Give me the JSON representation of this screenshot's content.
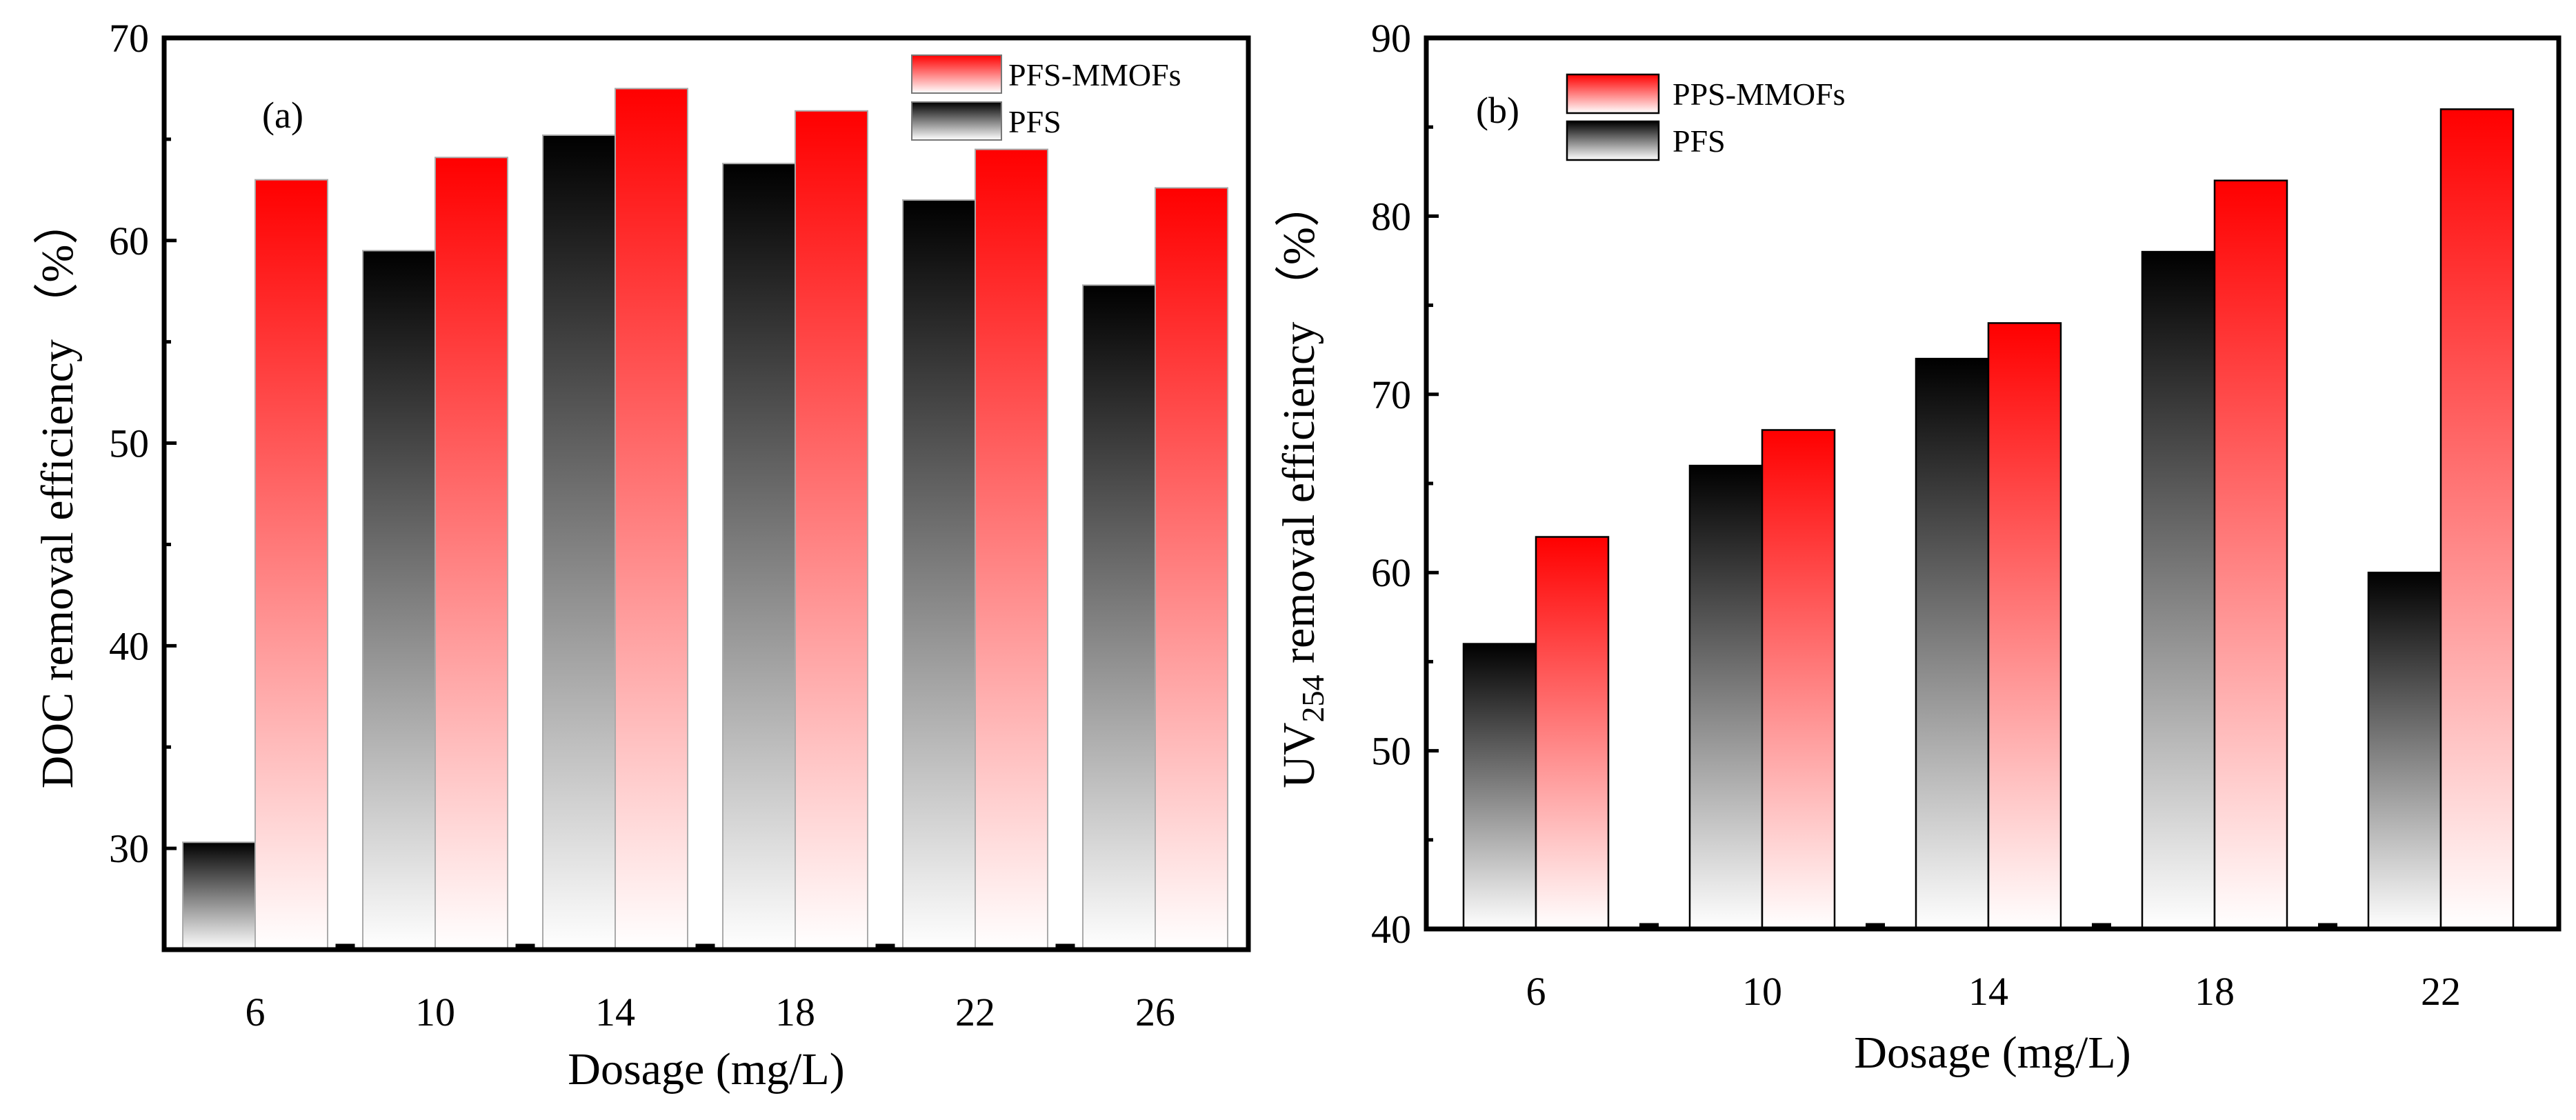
{
  "chart_data": [
    {
      "type": "bar",
      "panel_label": "(a)",
      "title": "",
      "xlabel": "Dosage (mg/L)",
      "ylabel": "DOC removal efficiency （%）",
      "categories": [
        "6",
        "10",
        "14",
        "18",
        "22",
        "26"
      ],
      "ylim": [
        25,
        70
      ],
      "yticks": [
        30,
        40,
        50,
        60,
        70
      ],
      "legend_position": "top-right",
      "series": [
        {
          "name": "PFS",
          "color": "#000000",
          "values": [
            30.3,
            59.5,
            65.2,
            63.8,
            62.0,
            57.8
          ]
        },
        {
          "name": "PFS-MMOFs",
          "color": "#ff0000",
          "values": [
            63.0,
            64.1,
            67.5,
            66.4,
            64.5,
            62.6
          ]
        }
      ]
    },
    {
      "type": "bar",
      "panel_label": "(b)",
      "title": "",
      "xlabel": "Dosage (mg/L)",
      "ylabel_main": "UV",
      "ylabel_sub": "254",
      "ylabel_rest": " removal efficiency （%）",
      "categories": [
        "6",
        "10",
        "14",
        "18",
        "22"
      ],
      "ylim": [
        40,
        90
      ],
      "yticks": [
        40,
        50,
        60,
        70,
        80,
        90
      ],
      "legend_position": "top-left",
      "series": [
        {
          "name": "PFS",
          "color": "#000000",
          "values": [
            56,
            66,
            72,
            78,
            60
          ]
        },
        {
          "name": "PPS-MMOFs",
          "color": "#ff0000",
          "values": [
            62,
            68,
            74,
            82,
            86
          ]
        }
      ]
    }
  ]
}
